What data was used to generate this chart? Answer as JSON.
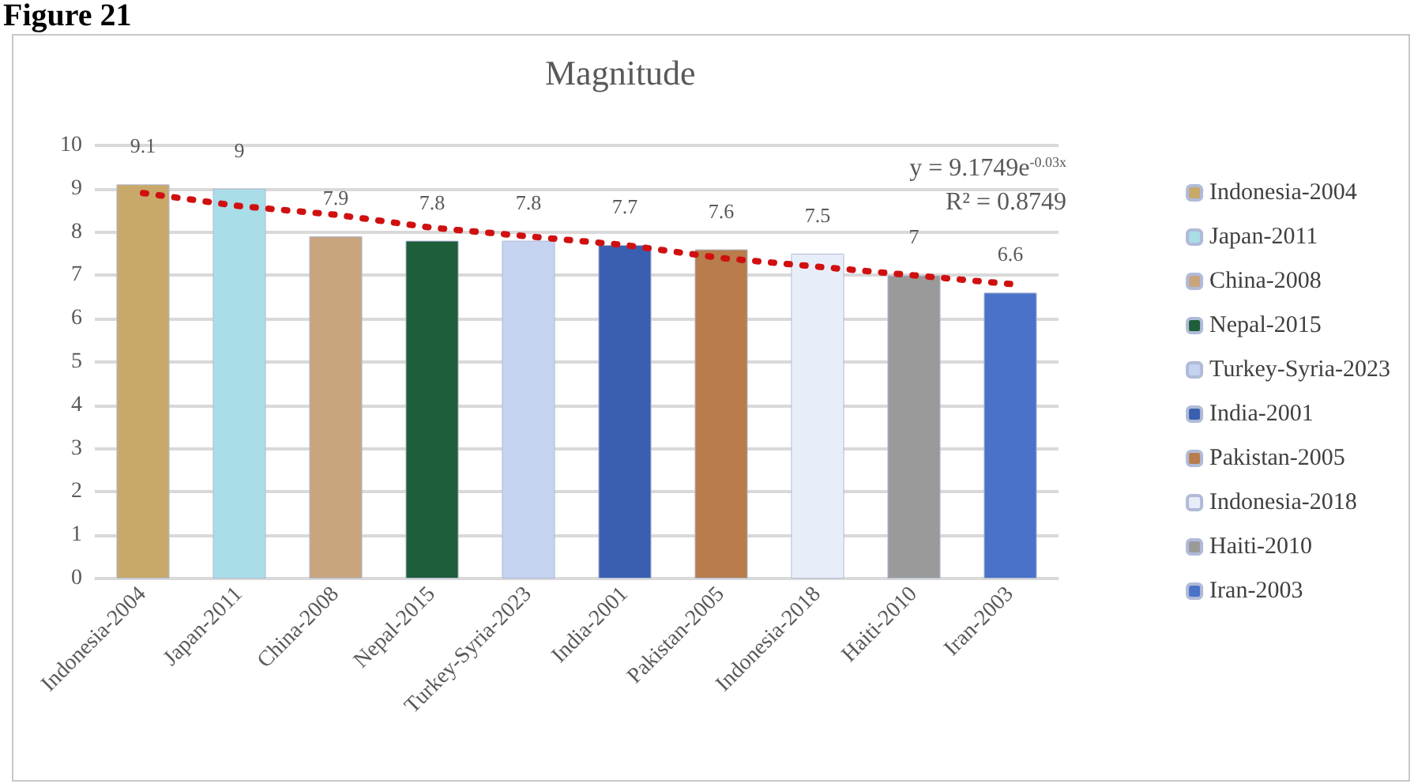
{
  "chart_data": {
    "type": "bar",
    "title": "Magnitude",
    "categories": [
      "Indonesia-2004",
      "Japan-2011",
      "China-2008",
      "Nepal-2015",
      "Turkey-Syria-2023",
      "India-2001",
      "Pakistan-2005",
      "Indonesia-2018",
      "Haiti-2010",
      "Iran-2003"
    ],
    "series": [
      {
        "name": "Indonesia-2004",
        "color": "#c8a96a",
        "values": [
          9.1,
          null,
          null,
          null,
          null,
          null,
          null,
          null,
          null,
          null
        ],
        "value_labels": [
          "9.1",
          null,
          null,
          null,
          null,
          null,
          null,
          null,
          null,
          null
        ]
      },
      {
        "name": "Japan-2011",
        "color": "#a9dde8",
        "values": [
          null,
          9,
          null,
          null,
          null,
          null,
          null,
          null,
          null,
          null
        ],
        "value_labels": [
          null,
          "9",
          null,
          null,
          null,
          null,
          null,
          null,
          null,
          null
        ]
      },
      {
        "name": "China-2008",
        "color": "#c9a57e",
        "values": [
          null,
          null,
          7.9,
          null,
          null,
          null,
          null,
          null,
          null,
          null
        ],
        "value_labels": [
          null,
          null,
          "7.9",
          null,
          null,
          null,
          null,
          null,
          null,
          null
        ]
      },
      {
        "name": "Nepal-2015",
        "color": "#1f5e3a",
        "values": [
          null,
          null,
          null,
          7.8,
          null,
          null,
          null,
          null,
          null,
          null
        ],
        "value_labels": [
          null,
          null,
          null,
          "7.8",
          null,
          null,
          null,
          null,
          null,
          null
        ]
      },
      {
        "name": "Turkey-Syria-2023",
        "color": "#c5d3f0",
        "values": [
          null,
          null,
          null,
          null,
          7.8,
          null,
          null,
          null,
          null,
          null
        ],
        "value_labels": [
          null,
          null,
          null,
          null,
          "7.8",
          null,
          null,
          null,
          null,
          null
        ]
      },
      {
        "name": "India-2001",
        "color": "#3b5fb0",
        "values": [
          null,
          null,
          null,
          null,
          null,
          7.7,
          null,
          null,
          null,
          null
        ],
        "value_labels": [
          null,
          null,
          null,
          null,
          null,
          "7.7",
          null,
          null,
          null,
          null
        ]
      },
      {
        "name": "Pakistan-2005",
        "color": "#b87d4b",
        "values": [
          null,
          null,
          null,
          null,
          null,
          null,
          7.6,
          null,
          null,
          null
        ],
        "value_labels": [
          null,
          null,
          null,
          null,
          null,
          null,
          "7.6",
          null,
          null,
          null
        ]
      },
      {
        "name": "Indonesia-2018",
        "color": "#e8eef9",
        "values": [
          null,
          null,
          null,
          null,
          null,
          null,
          null,
          7.5,
          null,
          null
        ],
        "value_labels": [
          null,
          null,
          null,
          null,
          null,
          null,
          null,
          "7.5",
          null,
          null
        ]
      },
      {
        "name": "Haiti-2010",
        "color": "#9a9a9a",
        "values": [
          null,
          null,
          null,
          null,
          null,
          null,
          null,
          null,
          7,
          null
        ],
        "value_labels": [
          null,
          null,
          null,
          null,
          null,
          null,
          null,
          null,
          "7",
          null
        ]
      },
      {
        "name": "Iran-2003",
        "color": "#4a72c8",
        "values": [
          null,
          null,
          null,
          null,
          null,
          null,
          null,
          null,
          null,
          6.6
        ],
        "value_labels": [
          null,
          null,
          null,
          null,
          null,
          null,
          null,
          null,
          null,
          "6.6"
        ]
      },
      {
        "type": "line",
        "line_style": "dotted",
        "color": "#d01010",
        "marker": "none",
        "values": [
          8.9,
          8.6,
          8.4,
          8.1,
          7.9,
          7.7,
          7.4,
          7.2,
          7.0,
          6.8
        ]
      }
    ],
    "ylim": [
      0,
      10
    ],
    "yticks": [
      0,
      1,
      2,
      3,
      4,
      5,
      6,
      7,
      8,
      9,
      10
    ],
    "grid": "y",
    "legend": "right",
    "annotations": [
      "Figure 21",
      "y = 9.1749e$^{-0.03x}$",
      "R² = 0.8749"
    ]
  }
}
